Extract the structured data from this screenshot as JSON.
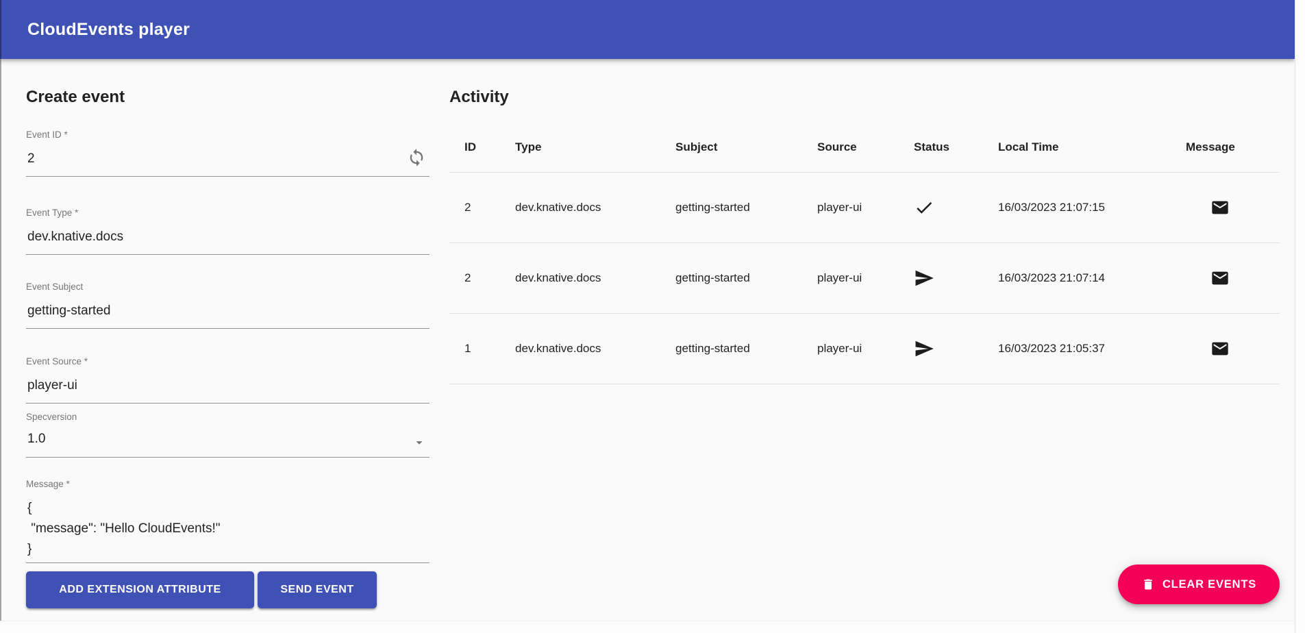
{
  "header": {
    "title": "CloudEvents player"
  },
  "colors": {
    "primary": "#3f51b5",
    "secondary": "#f50057",
    "background": "#fafafa"
  },
  "create_event": {
    "title": "Create event",
    "fields": {
      "event_id": {
        "label": "Event ID *",
        "value": "2",
        "icon": "sync-icon"
      },
      "event_type": {
        "label": "Event Type *",
        "value": "dev.knative.docs"
      },
      "event_subject": {
        "label": "Event Subject",
        "value": "getting-started"
      },
      "event_source": {
        "label": "Event Source *",
        "value": "player-ui"
      },
      "specversion": {
        "label": "Specversion",
        "value": "1.0",
        "icon": "dropdown-arrow-icon"
      },
      "message": {
        "label": "Message *",
        "value": "{\n \"message\": \"Hello CloudEvents!\"\n}"
      }
    },
    "buttons": {
      "add_extension": "ADD EXTENSION ATTRIBUTE",
      "send_event": "SEND EVENT"
    }
  },
  "activity": {
    "title": "Activity",
    "columns": {
      "id": "ID",
      "type": "Type",
      "subject": "Subject",
      "source": "Source",
      "status": "Status",
      "local_time": "Local Time",
      "message": "Message"
    },
    "rows": [
      {
        "id": "2",
        "type": "dev.knative.docs",
        "subject": "getting-started",
        "source": "player-ui",
        "status": "received",
        "status_icon": "check-icon",
        "local_time": "16/03/2023 21:07:15",
        "message_icon": "mail-icon"
      },
      {
        "id": "2",
        "type": "dev.knative.docs",
        "subject": "getting-started",
        "source": "player-ui",
        "status": "sent",
        "status_icon": "send-icon",
        "local_time": "16/03/2023 21:07:14",
        "message_icon": "mail-icon"
      },
      {
        "id": "1",
        "type": "dev.knative.docs",
        "subject": "getting-started",
        "source": "player-ui",
        "status": "sent",
        "status_icon": "send-icon",
        "local_time": "16/03/2023 21:05:37",
        "message_icon": "mail-icon"
      }
    ],
    "clear_button": {
      "label": "CLEAR EVENTS",
      "icon": "trash-icon"
    }
  }
}
